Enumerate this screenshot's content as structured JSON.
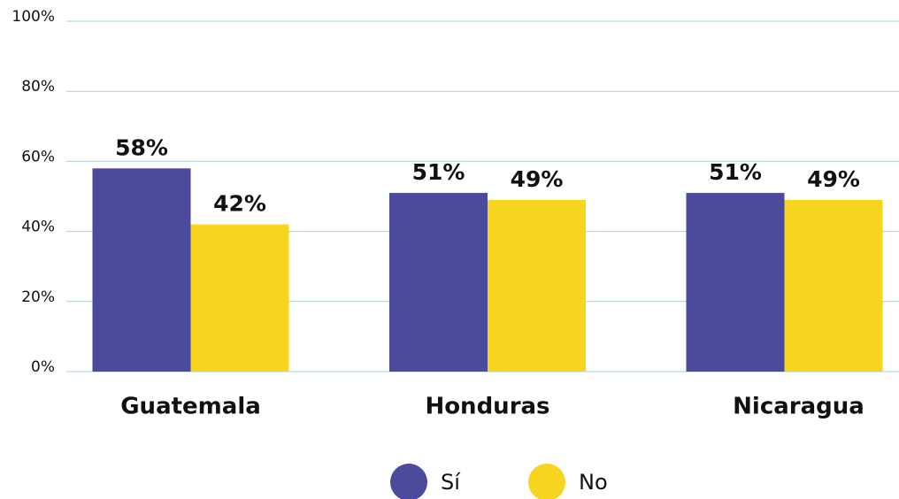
{
  "chart_data": {
    "type": "bar",
    "categories": [
      "Guatemala",
      "Honduras",
      "Nicaragua"
    ],
    "series": [
      {
        "name": "Sí",
        "color": "#4b4a9c",
        "values": [
          58,
          51,
          51
        ],
        "value_labels": [
          "58%",
          "51%",
          "51%"
        ]
      },
      {
        "name": "No",
        "color": "#f6d420",
        "values": [
          42,
          49,
          49
        ],
        "value_labels": [
          "42%",
          "49%",
          "49%"
        ]
      }
    ],
    "ylim": [
      0,
      100
    ],
    "yticks": [
      {
        "value": 0,
        "label": "0%"
      },
      {
        "value": 20,
        "label": "20%"
      },
      {
        "value": 40,
        "label": "40%"
      },
      {
        "value": 60,
        "label": "60%"
      },
      {
        "value": 80,
        "label": "80%"
      },
      {
        "value": 100,
        "label": "100%"
      }
    ],
    "grid": true,
    "legend": "bottom"
  }
}
